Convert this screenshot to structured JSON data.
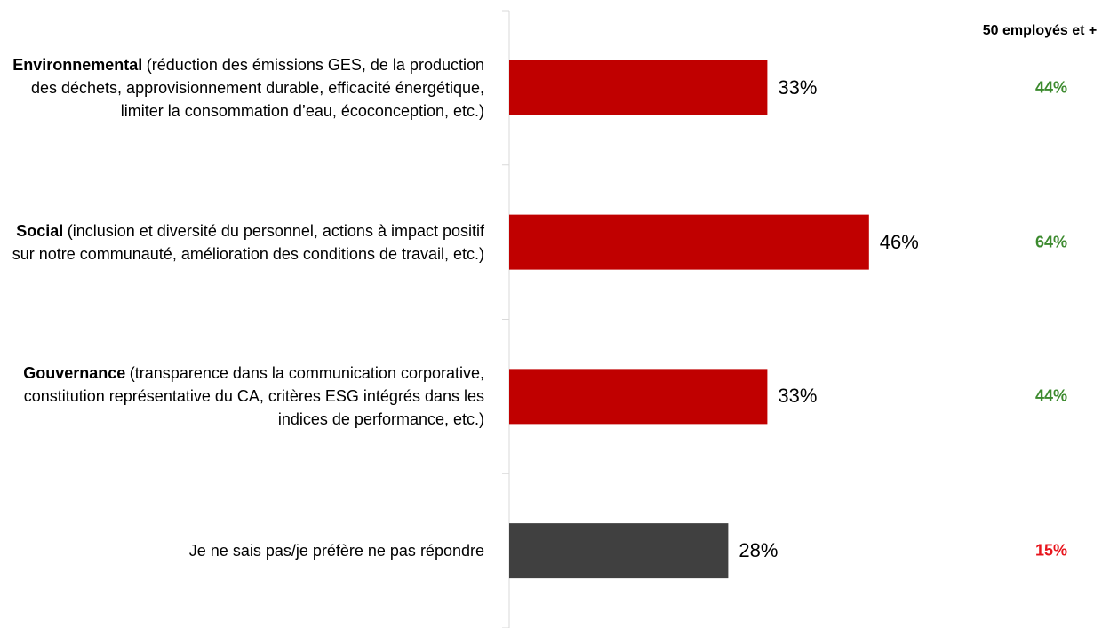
{
  "chart_data": {
    "type": "bar",
    "orientation": "horizontal",
    "categories": [
      {
        "name": "Environnemental",
        "detail": "(réduction des émissions GES, de la production des déchets, approvisionnement durable, efficacité énergétique, limiter la consommation d’eau, écoconception, etc.)"
      },
      {
        "name": "Social",
        "detail": "(inclusion et diversité du personnel, actions à impact positif sur notre communauté, amélioration des conditions de travail, etc.)"
      },
      {
        "name": "Gouvernance",
        "detail": "(transparence dans la communication corporative, constitution représentative du CA, critères ESG intégrés dans les indices de performance, etc.)"
      },
      {
        "detail": "Je ne sais pas/je préfère ne pas répondre"
      }
    ],
    "values": [
      33,
      46,
      33,
      28
    ],
    "value_labels": [
      "33%",
      "46%",
      "33%",
      "28%"
    ],
    "colors": [
      "#c00000",
      "#c00000",
      "#c00000",
      "#404040"
    ],
    "comparison": {
      "title": "50 employés et +",
      "values": [
        44,
        64,
        44,
        15
      ],
      "value_labels": [
        "44%",
        "64%",
        "44%",
        "15%"
      ],
      "colors": [
        "#3c8a2e",
        "#3c8a2e",
        "#3c8a2e",
        "#e8141c"
      ]
    }
  }
}
